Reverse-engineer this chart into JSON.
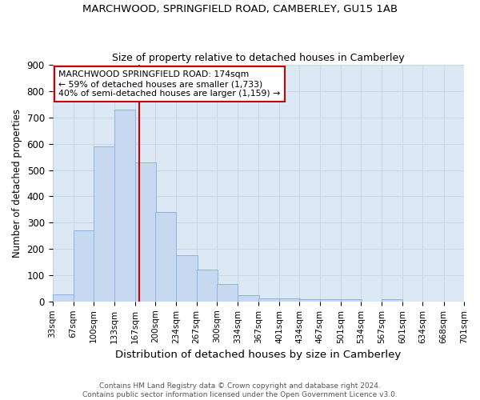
{
  "title1": "MARCHWOOD, SPRINGFIELD ROAD, CAMBERLEY, GU15 1AB",
  "title2": "Size of property relative to detached houses in Camberley",
  "xlabel": "Distribution of detached houses by size in Camberley",
  "ylabel": "Number of detached properties",
  "bin_edges": [
    33,
    67,
    100,
    133,
    167,
    200,
    234,
    267,
    300,
    334,
    367,
    401,
    434,
    467,
    501,
    534,
    567,
    601,
    634,
    668,
    701
  ],
  "bar_heights": [
    27,
    270,
    590,
    730,
    530,
    340,
    175,
    120,
    67,
    25,
    13,
    13,
    10,
    8,
    8,
    0,
    8,
    0,
    0,
    0
  ],
  "bar_color": "#c6d9f1",
  "bar_edge_color": "#8eb4e3",
  "property_size": 174,
  "vline_color": "#cc0000",
  "ylim": [
    0,
    900
  ],
  "yticks": [
    0,
    100,
    200,
    300,
    400,
    500,
    600,
    700,
    800,
    900
  ],
  "annotation_line1": "MARCHWOOD SPRINGFIELD ROAD: 174sqm",
  "annotation_line2": "← 59% of detached houses are smaller (1,733)",
  "annotation_line3": "40% of semi-detached houses are larger (1,159) →",
  "annotation_box_color": "#ffffff",
  "annotation_border_color": "#cc0000",
  "footer_line1": "Contains HM Land Registry data © Crown copyright and database right 2024.",
  "footer_line2": "Contains public sector information licensed under the Open Government Licence v3.0.",
  "grid_color": "#c8d8e8",
  "background_color": "#dce9f5"
}
